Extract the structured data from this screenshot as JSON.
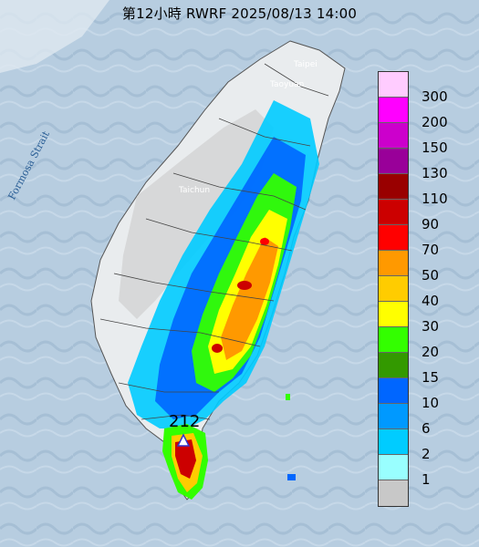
{
  "header": {
    "title": "第12小時  RWRF 2025/08/13 14:00"
  },
  "map": {
    "strait_label": "Formosa Strait",
    "cities": [
      "Taipei",
      "Taoyuan",
      "Taichun"
    ],
    "max_value": "212"
  },
  "legend": {
    "items": [
      {
        "label": "300",
        "color": "#ffccff"
      },
      {
        "label": "200",
        "color": "#ff00ff"
      },
      {
        "label": "150",
        "color": "#cc00cc"
      },
      {
        "label": "130",
        "color": "#990099"
      },
      {
        "label": "110",
        "color": "#990000"
      },
      {
        "label": "90",
        "color": "#cc0000"
      },
      {
        "label": "70",
        "color": "#ff0000"
      },
      {
        "label": "50",
        "color": "#ff9900"
      },
      {
        "label": "40",
        "color": "#ffcc00"
      },
      {
        "label": "30",
        "color": "#ffff00"
      },
      {
        "label": "20",
        "color": "#33ff00"
      },
      {
        "label": "15",
        "color": "#339900"
      },
      {
        "label": "10",
        "color": "#0066ff"
      },
      {
        "label": "6",
        "color": "#0099ff"
      },
      {
        "label": "2",
        "color": "#00ccff"
      },
      {
        "label": "1",
        "color": "#99ffff"
      },
      {
        "label": "",
        "color": "#c8c8c8"
      }
    ]
  }
}
